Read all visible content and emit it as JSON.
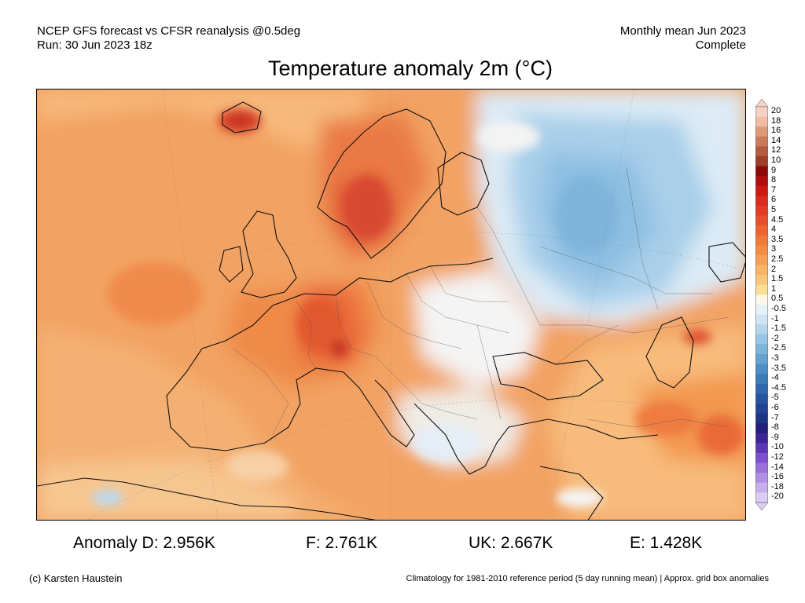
{
  "header": {
    "line1_left": "NCEP GFS forecast vs CFSR reanalysis @0.5deg",
    "line2_left": "Run: 30 Jun 2023 18z",
    "line1_right": "Monthly mean Jun 2023",
    "line2_right": "Complete"
  },
  "title": "Temperature anomaly 2m (°C)",
  "colorbar": {
    "labels": [
      "20",
      "18",
      "16",
      "14",
      "12",
      "10",
      "9",
      "8",
      "7",
      "6",
      "5",
      "4.5",
      "4",
      "3.5",
      "3",
      "2.5",
      "2",
      "1.5",
      "1",
      "0.5",
      "-0.5",
      "-1",
      "-1.5",
      "-2",
      "-2.5",
      "-3",
      "-3.5",
      "-4",
      "-4.5",
      "-5",
      "-6",
      "-7",
      "-8",
      "-9",
      "-10",
      "-12",
      "-14",
      "-16",
      "-18",
      "-20"
    ],
    "colors": [
      "#f5d2c3",
      "#eebda4",
      "#dd9a7a",
      "#c97a58",
      "#b45c3f",
      "#9a3f28",
      "#8c0a0a",
      "#b00e0e",
      "#cc1a12",
      "#d92b1e",
      "#e23d23",
      "#e7502b",
      "#ec6432",
      "#ef7a3a",
      "#f28c45",
      "#f5a055",
      "#f7b467",
      "#f8c77c",
      "#fae093",
      "#fff7e8",
      "#e7f1fa",
      "#cfe4f4",
      "#b4d5ec",
      "#98c5e3",
      "#7db4da",
      "#63a2d0",
      "#4d8fc4",
      "#3d7bb7",
      "#3168ab",
      "#27569f",
      "#224492",
      "#1e3485",
      "#221f7c",
      "#3e2596",
      "#5d36b3",
      "#7e50cb",
      "#9a6fd9",
      "#b18fe3",
      "#c8aeec",
      "#ddcdf4"
    ]
  },
  "stats": {
    "d": "Anomaly D: 2.956K",
    "f": "F: 2.761K",
    "uk": "UK: 2.667K",
    "e": "E: 1.428K"
  },
  "footer": {
    "left": "(c) Karsten Haustein",
    "right": "Climatology for 1981-2010 reference period (5 day running mean) | Approx. grid box anomalies"
  }
}
